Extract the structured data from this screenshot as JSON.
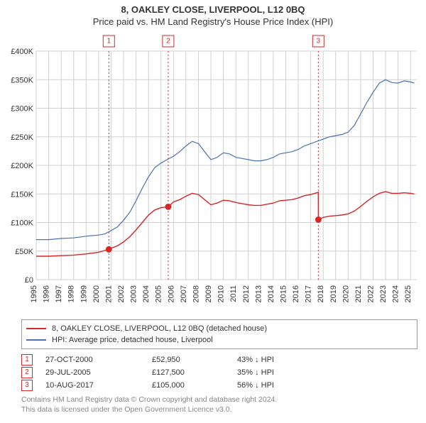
{
  "title_line1": "8, OAKLEY CLOSE, LIVERPOOL, L12 0BQ",
  "title_line2": "Price paid vs. HM Land Registry's House Price Index (HPI)",
  "chart": {
    "type": "line",
    "background_color": "#ffffff",
    "grid_color": "#d0d0d0",
    "axis_text_color": "#333333",
    "axis_fontsize": 11,
    "x_years": [
      1995,
      1996,
      1997,
      1998,
      1999,
      2000,
      2001,
      2002,
      2003,
      2004,
      2005,
      2006,
      2007,
      2008,
      2009,
      2010,
      2011,
      2012,
      2013,
      2014,
      2015,
      2016,
      2017,
      2018,
      2019,
      2020,
      2021,
      2022,
      2023,
      2024,
      2025
    ],
    "xlim": [
      1995,
      2025.5
    ],
    "y_ticks": [
      0,
      50000,
      100000,
      150000,
      200000,
      250000,
      300000,
      350000,
      400000
    ],
    "y_tick_labels": [
      "£0",
      "£50K",
      "£100K",
      "£150K",
      "£200K",
      "£250K",
      "£300K",
      "£350K",
      "£400K"
    ],
    "ylim": [
      0,
      400000
    ],
    "legend": {
      "border_color": "#999999",
      "items": [
        {
          "color": "#d62728",
          "label": "8, OAKLEY CLOSE, LIVERPOOL, L12 0BQ (detached house)"
        },
        {
          "color": "#4a72b2",
          "label": "HPI: Average price, detached house, Liverpool"
        }
      ]
    },
    "series_hpi": {
      "color": "#4a72b2",
      "line_width": 1.2,
      "points": [
        [
          1995.0,
          70000
        ],
        [
          1996.0,
          70000
        ],
        [
          1997.0,
          72000
        ],
        [
          1998.0,
          73000
        ],
        [
          1999.0,
          76000
        ],
        [
          2000.0,
          78000
        ],
        [
          2000.5,
          80000
        ],
        [
          2001.0,
          86000
        ],
        [
          2001.5,
          92000
        ],
        [
          2002.0,
          104000
        ],
        [
          2002.5,
          118000
        ],
        [
          2003.0,
          138000
        ],
        [
          2003.5,
          160000
        ],
        [
          2004.0,
          180000
        ],
        [
          2004.5,
          196000
        ],
        [
          2005.0,
          204000
        ],
        [
          2005.5,
          210000
        ],
        [
          2006.0,
          216000
        ],
        [
          2006.5,
          224000
        ],
        [
          2007.0,
          234000
        ],
        [
          2007.5,
          242000
        ],
        [
          2008.0,
          238000
        ],
        [
          2008.5,
          224000
        ],
        [
          2009.0,
          210000
        ],
        [
          2009.5,
          214000
        ],
        [
          2010.0,
          222000
        ],
        [
          2010.5,
          220000
        ],
        [
          2011.0,
          214000
        ],
        [
          2011.5,
          212000
        ],
        [
          2012.0,
          210000
        ],
        [
          2012.5,
          208000
        ],
        [
          2013.0,
          208000
        ],
        [
          2013.5,
          210000
        ],
        [
          2014.0,
          214000
        ],
        [
          2014.5,
          220000
        ],
        [
          2015.0,
          222000
        ],
        [
          2015.5,
          224000
        ],
        [
          2016.0,
          228000
        ],
        [
          2016.5,
          234000
        ],
        [
          2017.0,
          238000
        ],
        [
          2017.5,
          242000
        ],
        [
          2018.0,
          246000
        ],
        [
          2018.5,
          250000
        ],
        [
          2019.0,
          252000
        ],
        [
          2019.5,
          254000
        ],
        [
          2020.0,
          258000
        ],
        [
          2020.5,
          270000
        ],
        [
          2021.0,
          290000
        ],
        [
          2021.5,
          310000
        ],
        [
          2022.0,
          328000
        ],
        [
          2022.5,
          344000
        ],
        [
          2023.0,
          350000
        ],
        [
          2023.5,
          345000
        ],
        [
          2024.0,
          344000
        ],
        [
          2024.5,
          348000
        ],
        [
          2025.0,
          346000
        ],
        [
          2025.3,
          344000
        ]
      ]
    },
    "series_property": {
      "color": "#d62728",
      "line_width": 1.4,
      "points": [
        [
          1995.0,
          41000
        ],
        [
          1996.0,
          41000
        ],
        [
          1997.0,
          42000
        ],
        [
          1998.0,
          43000
        ],
        [
          1999.0,
          45000
        ],
        [
          2000.0,
          48000
        ],
        [
          2000.82,
          52950
        ],
        [
          2001.0,
          55000
        ],
        [
          2001.5,
          59000
        ],
        [
          2002.0,
          66000
        ],
        [
          2002.5,
          75000
        ],
        [
          2003.0,
          87000
        ],
        [
          2003.5,
          100000
        ],
        [
          2004.0,
          113000
        ],
        [
          2004.5,
          122000
        ],
        [
          2005.0,
          126000
        ],
        [
          2005.58,
          127500
        ],
        [
          2006.0,
          136000
        ],
        [
          2006.5,
          140000
        ],
        [
          2007.0,
          146000
        ],
        [
          2007.5,
          151000
        ],
        [
          2008.0,
          149000
        ],
        [
          2008.5,
          140000
        ],
        [
          2009.0,
          131000
        ],
        [
          2009.5,
          134000
        ],
        [
          2010.0,
          139000
        ],
        [
          2010.5,
          138000
        ],
        [
          2011.0,
          135000
        ],
        [
          2011.5,
          133000
        ],
        [
          2012.0,
          131000
        ],
        [
          2012.5,
          130000
        ],
        [
          2013.0,
          130000
        ],
        [
          2013.5,
          132000
        ],
        [
          2014.0,
          134000
        ],
        [
          2014.5,
          138000
        ],
        [
          2015.0,
          139000
        ],
        [
          2015.5,
          140000
        ],
        [
          2016.0,
          143000
        ],
        [
          2016.5,
          147000
        ],
        [
          2017.0,
          149000
        ],
        [
          2017.5,
          152000
        ],
        [
          2017.61,
          153000
        ],
        [
          2017.611,
          105000
        ],
        [
          2018.0,
          109000
        ],
        [
          2018.5,
          111000
        ],
        [
          2019.0,
          112000
        ],
        [
          2019.5,
          113000
        ],
        [
          2020.0,
          115000
        ],
        [
          2020.5,
          120000
        ],
        [
          2021.0,
          128000
        ],
        [
          2021.5,
          137000
        ],
        [
          2022.0,
          145000
        ],
        [
          2022.5,
          151000
        ],
        [
          2023.0,
          154000
        ],
        [
          2023.5,
          151000
        ],
        [
          2024.0,
          151000
        ],
        [
          2024.5,
          152000
        ],
        [
          2025.0,
          151000
        ],
        [
          2025.3,
          150000
        ]
      ]
    },
    "markers": [
      {
        "n": "1",
        "year": 2000.82,
        "price": 52950
      },
      {
        "n": "2",
        "year": 2005.58,
        "price": 127500
      },
      {
        "n": "3",
        "year": 2017.61,
        "price": 105000
      }
    ],
    "marker_style": {
      "badge_border": "#d62728",
      "badge_fill": "#ffffff",
      "dot_fill": "#d62728",
      "dash": "2 3"
    }
  },
  "events": [
    {
      "n": "1",
      "date": "27-OCT-2000",
      "price": "£52,950",
      "hpi": "43% ↓ HPI"
    },
    {
      "n": "2",
      "date": "29-JUL-2005",
      "price": "£127,500",
      "hpi": "35% ↓ HPI"
    },
    {
      "n": "3",
      "date": "10-AUG-2017",
      "price": "£105,000",
      "hpi": "56% ↓ HPI"
    }
  ],
  "footer_line1": "Contains HM Land Registry data © Crown copyright and database right 2024.",
  "footer_line2": "This data is licensed under the Open Government Licence v3.0.",
  "footer_color": "#888888"
}
